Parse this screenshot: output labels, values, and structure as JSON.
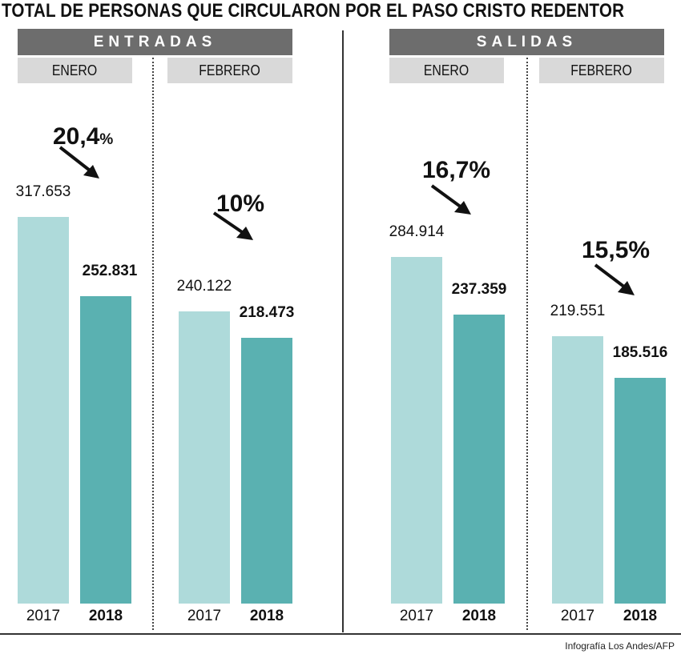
{
  "title": "TOTAL DE PERSONAS QUE CIRCULARON POR EL PASO CRISTO REDENTOR",
  "credit": "Infografía Los Andes/AFP",
  "colors": {
    "bar_2017": "#aedada",
    "bar_2018": "#5ab1b1",
    "band": "#6d6d6d",
    "month_band": "#d9d9d9"
  },
  "sections": {
    "entradas": {
      "label": "ENTRADAS",
      "enero": {
        "month": "ENERO",
        "pct": "20,4",
        "pct_sign": "%",
        "v2017": "317.653",
        "v2018": "252.831",
        "y2017": "2017",
        "y2018": "2018"
      },
      "febrero": {
        "month": "FEBRERO",
        "pct": "10%",
        "v2017": "240.122",
        "v2018": "218.473",
        "y2017": "2017",
        "y2018": "2018"
      }
    },
    "salidas": {
      "label": "SALIDAS",
      "enero": {
        "month": "ENERO",
        "pct": "16,7%",
        "v2017": "284.914",
        "v2018": "237.359",
        "y2017": "2017",
        "y2018": "2018"
      },
      "febrero": {
        "month": "FEBRERO",
        "pct": "15,5%",
        "v2017": "219.551",
        "v2018": "185.516",
        "y2017": "2017",
        "y2018": "2018"
      }
    }
  },
  "chart_data": {
    "type": "bar",
    "title": "TOTAL DE PERSONAS QUE CIRCULARON POR EL PASO CRISTO REDENTOR",
    "groups": [
      {
        "section": "ENTRADAS",
        "month": "ENERO",
        "change": "20,4%",
        "categories": [
          "2017",
          "2018"
        ],
        "values": [
          317653,
          252831
        ]
      },
      {
        "section": "ENTRADAS",
        "month": "FEBRERO",
        "change": "10%",
        "categories": [
          "2017",
          "2018"
        ],
        "values": [
          240122,
          218473
        ]
      },
      {
        "section": "SALIDAS",
        "month": "ENERO",
        "change": "16,7%",
        "categories": [
          "2017",
          "2018"
        ],
        "values": [
          284914,
          237359
        ]
      },
      {
        "section": "SALIDAS",
        "month": "FEBRERO",
        "change": "15,5%",
        "categories": [
          "2017",
          "2018"
        ],
        "values": [
          219551,
          185516
        ]
      }
    ],
    "ylim": [
      0,
      330000
    ],
    "grid": false
  }
}
